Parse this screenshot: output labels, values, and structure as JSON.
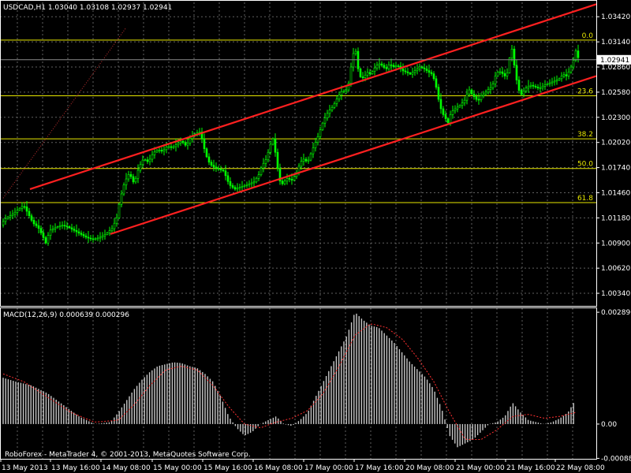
{
  "header": {
    "main_title": "USDCAD,H1  1.03040 1.03108 1.02937 1.02941",
    "macd_title": "MACD(12,26,9) 0.000639 0.000296",
    "footer": "RoboForex - MetaTrader 4, © 2001-2013, MetaQuotes Software Corp."
  },
  "colors": {
    "background": "#000000",
    "grid": "#606060",
    "bull": "#00ff00",
    "trendline": "#ff2020",
    "fib": "#e8e800",
    "macd_hist": "#c8c8c8",
    "macd_signal": "#ff3030",
    "text": "#ffffff"
  },
  "chart_data": [
    {
      "type": "candlestick",
      "title": "USDCAD,H1  1.03040 1.03108 1.02937 1.02941",
      "ylim": [
        1.002,
        1.0358
      ],
      "y_ticks": [
        "1.03420",
        "1.03140",
        "1.02860",
        "1.02580",
        "1.02300",
        "1.02020",
        "1.01740",
        "1.01460",
        "1.01180",
        "1.00900",
        "1.00620",
        "1.00340"
      ],
      "current_price": "1.02941",
      "x_ticks": [
        "13 May 2013",
        "13 May 16:00",
        "14 May 08:00",
        "15 May 00:00",
        "15 May 16:00",
        "16 May 08:00",
        "17 May 00:00",
        "17 May 16:00",
        "20 May 08:00",
        "21 May 00:00",
        "21 May 16:00",
        "22 May 08:00"
      ],
      "close_path": [
        [
          0,
          1.011
        ],
        [
          8,
          1.0118
        ],
        [
          16,
          1.0122
        ],
        [
          24,
          1.0128
        ],
        [
          30,
          1.0132
        ],
        [
          36,
          1.0122
        ],
        [
          42,
          1.0112
        ],
        [
          48,
          1.0108
        ],
        [
          54,
          1.0098
        ],
        [
          58,
          1.009
        ],
        [
          63,
          1.0104
        ],
        [
          70,
          1.0107
        ],
        [
          78,
          1.011
        ],
        [
          86,
          1.0108
        ],
        [
          94,
          1.0104
        ],
        [
          102,
          1.01
        ],
        [
          110,
          1.0096
        ],
        [
          118,
          1.0094
        ],
        [
          126,
          1.0096
        ],
        [
          134,
          1.01
        ],
        [
          142,
          1.0106
        ],
        [
          148,
          1.0118
        ],
        [
          152,
          1.0138
        ],
        [
          158,
          1.0158
        ],
        [
          164,
          1.0168
        ],
        [
          170,
          1.0156
        ],
        [
          176,
          1.0174
        ],
        [
          182,
          1.0184
        ],
        [
          188,
          1.018
        ],
        [
          194,
          1.019
        ],
        [
          200,
          1.0194
        ],
        [
          206,
          1.0192
        ],
        [
          212,
          1.0198
        ],
        [
          218,
          1.0196
        ],
        [
          224,
          1.02
        ],
        [
          230,
          1.0204
        ],
        [
          236,
          1.0198
        ],
        [
          242,
          1.0208
        ],
        [
          248,
          1.0212
        ],
        [
          254,
          1.0214
        ],
        [
          258,
          1.0198
        ],
        [
          262,
          1.0186
        ],
        [
          266,
          1.0178
        ],
        [
          272,
          1.0174
        ],
        [
          278,
          1.0172
        ],
        [
          284,
          1.017
        ],
        [
          288,
          1.016
        ],
        [
          292,
          1.0154
        ],
        [
          298,
          1.015
        ],
        [
          304,
          1.0152
        ],
        [
          310,
          1.0154
        ],
        [
          316,
          1.0156
        ],
        [
          322,
          1.0158
        ],
        [
          328,
          1.0166
        ],
        [
          332,
          1.0176
        ],
        [
          338,
          1.0184
        ],
        [
          342,
          1.0198
        ],
        [
          346,
          1.0206
        ],
        [
          350,
          1.0186
        ],
        [
          354,
          1.016
        ],
        [
          358,
          1.0156
        ],
        [
          364,
          1.0162
        ],
        [
          370,
          1.016
        ],
        [
          376,
          1.0168
        ],
        [
          380,
          1.0178
        ],
        [
          384,
          1.0184
        ],
        [
          390,
          1.018
        ],
        [
          396,
          1.0194
        ],
        [
          402,
          1.0206
        ],
        [
          406,
          1.0216
        ],
        [
          410,
          1.0226
        ],
        [
          416,
          1.0236
        ],
        [
          422,
          1.0242
        ],
        [
          428,
          1.0252
        ],
        [
          434,
          1.026
        ],
        [
          438,
          1.0258
        ],
        [
          442,
          1.0268
        ],
        [
          446,
          1.0292
        ],
        [
          450,
          1.031
        ],
        [
          454,
          1.0284
        ],
        [
          458,
          1.0272
        ],
        [
          462,
          1.0276
        ],
        [
          466,
          1.028
        ],
        [
          470,
          1.0278
        ],
        [
          474,
          1.0284
        ],
        [
          478,
          1.0288
        ],
        [
          482,
          1.029
        ],
        [
          486,
          1.0286
        ],
        [
          490,
          1.0284
        ],
        [
          494,
          1.029
        ],
        [
          498,
          1.0286
        ],
        [
          504,
          1.0288
        ],
        [
          510,
          1.0282
        ],
        [
          516,
          1.028
        ],
        [
          520,
          1.0278
        ],
        [
          526,
          1.0282
        ],
        [
          532,
          1.0286
        ],
        [
          538,
          1.0284
        ],
        [
          544,
          1.028
        ],
        [
          548,
          1.0278
        ],
        [
          552,
          1.0268
        ],
        [
          556,
          1.025
        ],
        [
          560,
          1.0236
        ],
        [
          564,
          1.023
        ],
        [
          568,
          1.0224
        ],
        [
          572,
          1.0236
        ],
        [
          578,
          1.024
        ],
        [
          584,
          1.0244
        ],
        [
          590,
          1.025
        ],
        [
          594,
          1.0262
        ],
        [
          598,
          1.0256
        ],
        [
          602,
          1.0252
        ],
        [
          606,
          1.0248
        ],
        [
          610,
          1.0254
        ],
        [
          616,
          1.0258
        ],
        [
          620,
          1.0262
        ],
        [
          624,
          1.0264
        ],
        [
          628,
          1.0276
        ],
        [
          632,
          1.0282
        ],
        [
          638,
          1.0278
        ],
        [
          642,
          1.0274
        ],
        [
          646,
          1.0296
        ],
        [
          648,
          1.0312
        ],
        [
          652,
          1.0288
        ],
        [
          656,
          1.0266
        ],
        [
          660,
          1.0254
        ],
        [
          666,
          1.0262
        ],
        [
          672,
          1.0266
        ],
        [
          678,
          1.0264
        ],
        [
          684,
          1.0262
        ],
        [
          690,
          1.0266
        ],
        [
          696,
          1.0268
        ],
        [
          702,
          1.027
        ],
        [
          708,
          1.0272
        ],
        [
          714,
          1.0278
        ],
        [
          718,
          1.0276
        ],
        [
          722,
          1.0282
        ],
        [
          726,
          1.029
        ],
        [
          730,
          1.0304
        ],
        [
          734,
          1.0294
        ]
      ],
      "channel_lines": [
        {
          "from": [
            38,
            1.015
          ],
          "to": [
            756,
            1.0356
          ]
        },
        {
          "from": [
            140,
            1.01
          ],
          "to": [
            756,
            1.0276
          ]
        }
      ],
      "fib_levels": [
        {
          "label": "0.0",
          "value": 1.0316
        },
        {
          "label": "23.6",
          "value": 1.0254
        },
        {
          "label": "38.2",
          "value": 1.0206
        },
        {
          "label": "50.0",
          "value": 1.0173
        },
        {
          "label": "61.8",
          "value": 1.0135
        }
      ]
    },
    {
      "type": "bar",
      "title": "MACD(12,26,9) 0.000639 0.000296",
      "ylim": [
        -0.0009,
        0.003
      ],
      "y_ticks": [
        "0.002896",
        "0.00",
        "-0.000888"
      ],
      "histogram_path": [
        [
          4,
          0.0012
        ],
        [
          20,
          0.0011
        ],
        [
          40,
          0.001
        ],
        [
          60,
          0.0008
        ],
        [
          80,
          0.0005
        ],
        [
          100,
          0.0002
        ],
        [
          120,
          0.0
        ],
        [
          140,
          5e-05
        ],
        [
          150,
          0.0003
        ],
        [
          160,
          0.0006
        ],
        [
          170,
          0.0009
        ],
        [
          180,
          0.00115
        ],
        [
          190,
          0.00135
        ],
        [
          200,
          0.0015
        ],
        [
          210,
          0.00155
        ],
        [
          220,
          0.0016
        ],
        [
          230,
          0.00158
        ],
        [
          240,
          0.0015
        ],
        [
          250,
          0.00145
        ],
        [
          260,
          0.0013
        ],
        [
          270,
          0.0011
        ],
        [
          280,
          0.0007
        ],
        [
          290,
          0.0002
        ],
        [
          300,
          -0.0001
        ],
        [
          310,
          -0.0003
        ],
        [
          320,
          -0.0002
        ],
        [
          330,
          0.0
        ],
        [
          340,
          0.0001
        ],
        [
          350,
          0.0002
        ],
        [
          360,
          0.0
        ],
        [
          370,
          -5e-05
        ],
        [
          380,
          0.0001
        ],
        [
          390,
          0.0003
        ],
        [
          400,
          0.0007
        ],
        [
          410,
          0.0011
        ],
        [
          420,
          0.0015
        ],
        [
          430,
          0.0019
        ],
        [
          440,
          0.0023
        ],
        [
          450,
          0.0029
        ],
        [
          460,
          0.0027
        ],
        [
          470,
          0.00255
        ],
        [
          480,
          0.0025
        ],
        [
          490,
          0.0023
        ],
        [
          500,
          0.0021
        ],
        [
          510,
          0.00185
        ],
        [
          520,
          0.0016
        ],
        [
          530,
          0.0014
        ],
        [
          540,
          0.0012
        ],
        [
          550,
          0.0009
        ],
        [
          560,
          0.0004
        ],
        [
          570,
          -0.0003
        ],
        [
          580,
          -0.0006
        ],
        [
          590,
          -0.0005
        ],
        [
          600,
          -0.0004
        ],
        [
          610,
          -0.0002
        ],
        [
          620,
          0.0
        ],
        [
          630,
          5e-05
        ],
        [
          640,
          0.0002
        ],
        [
          650,
          0.00055
        ],
        [
          660,
          0.0003
        ],
        [
          670,
          0.0001
        ],
        [
          680,
          5e-05
        ],
        [
          690,
          0.0
        ],
        [
          700,
          5e-05
        ],
        [
          710,
          0.00015
        ],
        [
          720,
          0.0003
        ],
        [
          730,
          0.00064
        ]
      ],
      "signal_path": [
        [
          4,
          0.0013
        ],
        [
          30,
          0.0011
        ],
        [
          60,
          0.0007
        ],
        [
          90,
          0.0003
        ],
        [
          120,
          5e-05
        ],
        [
          150,
          0.0001
        ],
        [
          170,
          0.0005
        ],
        [
          190,
          0.001
        ],
        [
          210,
          0.0014
        ],
        [
          230,
          0.0015
        ],
        [
          250,
          0.0014
        ],
        [
          270,
          0.001
        ],
        [
          290,
          0.00045
        ],
        [
          310,
          0.0
        ],
        [
          330,
          -0.0001
        ],
        [
          350,
          5e-05
        ],
        [
          370,
          0.00015
        ],
        [
          390,
          0.00035
        ],
        [
          410,
          0.0008
        ],
        [
          430,
          0.0015
        ],
        [
          450,
          0.0023
        ],
        [
          470,
          0.0026
        ],
        [
          490,
          0.0025
        ],
        [
          510,
          0.0022
        ],
        [
          530,
          0.0017
        ],
        [
          550,
          0.0011
        ],
        [
          570,
          0.0003
        ],
        [
          590,
          -0.0004
        ],
        [
          610,
          -0.0004
        ],
        [
          630,
          -0.00015
        ],
        [
          650,
          0.0002
        ],
        [
          670,
          0.00025
        ],
        [
          690,
          0.00015
        ],
        [
          710,
          0.0002
        ],
        [
          730,
          0.0003
        ]
      ]
    }
  ]
}
